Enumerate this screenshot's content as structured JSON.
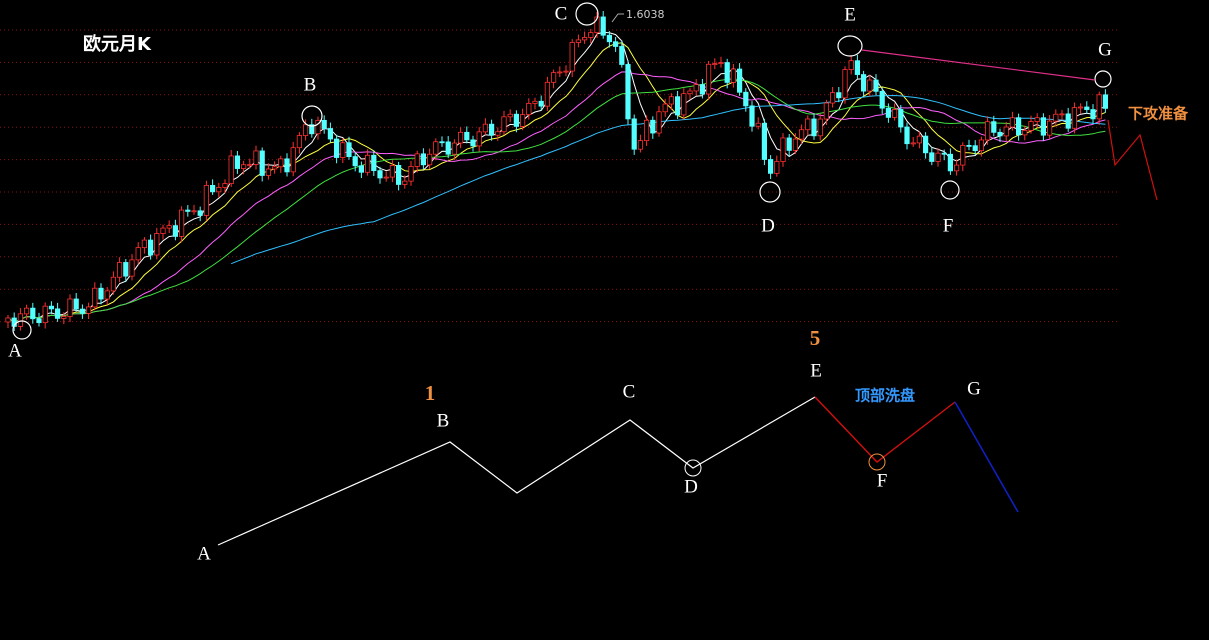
{
  "title": "欧元月K",
  "price_label": "1.6038",
  "upper_points": {
    "A": "A",
    "B": "B",
    "C": "C",
    "D": "D",
    "E": "E",
    "F": "F",
    "G": "G"
  },
  "side_note": "下攻准备",
  "wave": {
    "label_1": "1",
    "label_5": "5",
    "note": "顶部洗盘",
    "points": {
      "A": "A",
      "B": "B",
      "C": "C",
      "D": "D",
      "E": "E",
      "F": "F",
      "G": "G"
    }
  }
}
